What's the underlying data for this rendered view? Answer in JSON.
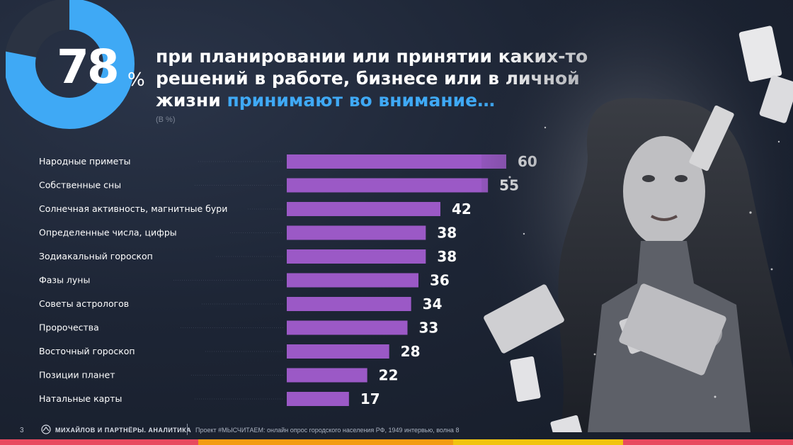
{
  "summary": {
    "percent": "78",
    "percent_sign": "%",
    "fraction": 0.78,
    "headline_main": "при планировании или принятии каких-то решений в работе, бизнесе или в личной жизни",
    "headline_accent": "принимают во внимание…",
    "unit_note": "(В %)"
  },
  "colors": {
    "bar": "#9b59c6",
    "donut_main": "#3fa9f5",
    "donut_rest": "#2b3342",
    "accent_text": "#3fa9f5"
  },
  "chart_data": {
    "type": "bar",
    "orientation": "horizontal",
    "categories": [
      "Народные приметы",
      "Собственные сны",
      "Солнечная активность, магнитные бури",
      "Определенные числа, цифры",
      "Зодиакальный гороскоп",
      "Фазы луны",
      "Советы астрологов",
      "Пророчества",
      "Восточный гороскоп",
      "Позиции планет",
      "Натальные карты"
    ],
    "values": [
      60,
      55,
      42,
      38,
      38,
      36,
      34,
      33,
      28,
      22,
      17
    ],
    "data_labels": [
      "60",
      "55",
      "42",
      "38",
      "38",
      "36",
      "34",
      "33",
      "28",
      "22",
      "17"
    ],
    "xlim": [
      0,
      60
    ],
    "grid": false,
    "legend": "none"
  },
  "footer": {
    "page_number": "3",
    "brand": "МИХАЙЛОВ И ПАРТНЁРЫ. АНАЛИТИКА",
    "source": "Проект #МЫСЧИТАЕМ: онлайн опрос городского населения РФ, 1949 интервью, волна 8"
  },
  "decor": {
    "footer_stripe_colors": [
      "#e84a5f",
      "#f39c12",
      "#f1c40f",
      "#e84a5f"
    ],
    "photo_icon": "woman-with-cards-photo"
  }
}
